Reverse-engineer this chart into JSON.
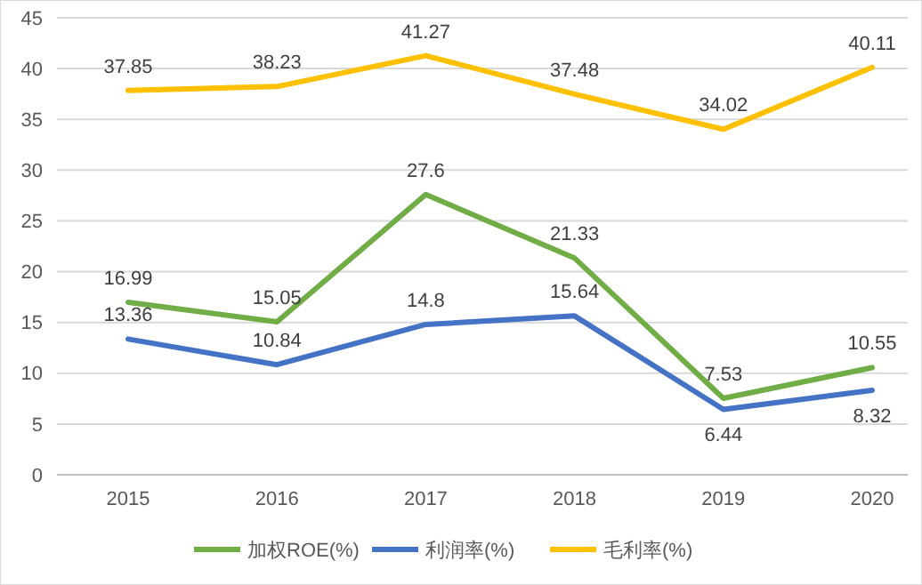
{
  "chart_data": {
    "type": "line",
    "categories": [
      "2015",
      "2016",
      "2017",
      "2018",
      "2019",
      "2020"
    ],
    "series": [
      {
        "name": "加权ROE(%)",
        "color": "#70ad47",
        "values": [
          16.99,
          15.05,
          27.6,
          21.33,
          7.53,
          10.55
        ]
      },
      {
        "name": "利润率(%)",
        "color": "#4472c4",
        "values": [
          13.36,
          10.84,
          14.8,
          15.64,
          6.44,
          8.32
        ]
      },
      {
        "name": "毛利率(%)",
        "color": "#ffc000",
        "values": [
          37.85,
          38.23,
          41.27,
          37.48,
          34.02,
          40.11
        ]
      }
    ],
    "ylim": [
      0,
      45
    ],
    "yticks": [
      0,
      5,
      10,
      15,
      20,
      25,
      30,
      35,
      40,
      45
    ],
    "grid": "y",
    "legend": "bottom",
    "data_labels": true,
    "marker": "none",
    "line_style": "solid"
  }
}
